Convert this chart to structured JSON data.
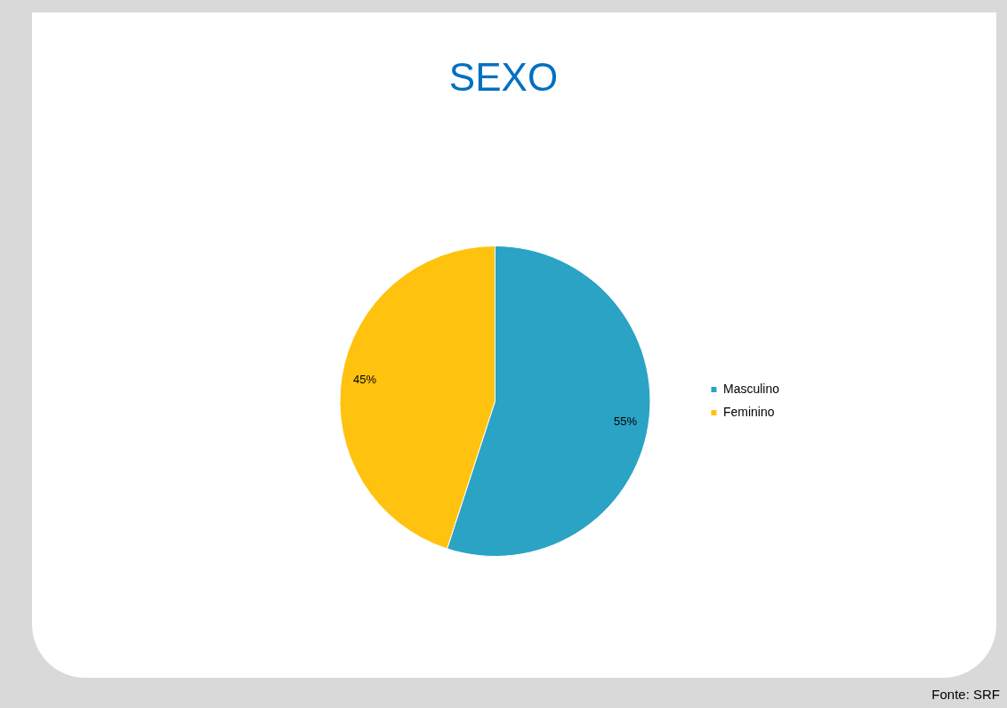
{
  "chart_data": {
    "type": "pie",
    "title": "SEXO",
    "categories": [
      "Masculino",
      "Feminino"
    ],
    "values": [
      55,
      45
    ],
    "colors": [
      "#2aa3c4",
      "#ffc20e"
    ],
    "value_labels": [
      "55%",
      "45%"
    ],
    "legend": "right",
    "annotations": [
      "Fonte: SRF"
    ]
  }
}
